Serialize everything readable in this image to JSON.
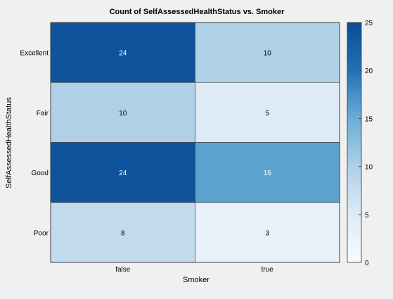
{
  "chart_data": {
    "type": "heatmap",
    "title": "Count of SelfAssessedHealthStatus vs. Smoker",
    "xlabel": "Smoker",
    "ylabel": "SelfAssessedHealthStatus",
    "x_categories": [
      "false",
      "true"
    ],
    "y_categories": [
      "Excellent",
      "Fair",
      "Good",
      "Poor"
    ],
    "values": [
      [
        24,
        10
      ],
      [
        10,
        5
      ],
      [
        24,
        16
      ],
      [
        8,
        3
      ]
    ],
    "colorbar": {
      "min": 0,
      "max": 25,
      "ticks": [
        0,
        5,
        10,
        15,
        20,
        25
      ],
      "colormap": "blues",
      "low_color": "#f7fbff",
      "high_color": "#0b4c96"
    }
  },
  "colors": {
    "figure_background": "#f0f0f0",
    "text": "#000000",
    "grid_line": "#333333"
  }
}
